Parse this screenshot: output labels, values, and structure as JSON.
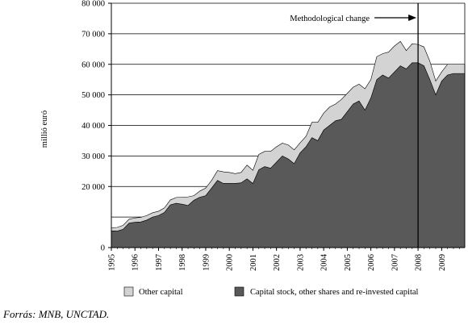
{
  "chart_data": {
    "type": "area",
    "stacked": true,
    "title": "",
    "xlabel": "",
    "ylabel": "millió euró",
    "ylim": [
      0,
      80000
    ],
    "y_ticks": [
      {
        "value": 0,
        "label": "0"
      },
      {
        "value": 20000,
        "label": "20 000"
      },
      {
        "value": 30000,
        "label": "30 000"
      },
      {
        "value": 40000,
        "label": "40 000"
      },
      {
        "value": 50000,
        "label": "50 000"
      },
      {
        "value": 60000,
        "label": "60 000"
      },
      {
        "value": 70000,
        "label": "70 000"
      },
      {
        "value": 80000,
        "label": "80 000"
      }
    ],
    "gridlines_y": [
      10000,
      20000,
      30000,
      40000,
      50000,
      60000,
      70000,
      80000
    ],
    "x_range": [
      1995,
      2009.98
    ],
    "x_ticks": [
      "1995",
      "1996",
      "1997",
      "1998",
      "1999",
      "2000",
      "2001",
      "2002",
      "2003",
      "2004",
      "2005",
      "2006",
      "2007",
      "2008",
      "2009"
    ],
    "annotation": {
      "text": "Methodological change",
      "x": 2008.0
    },
    "legend_position": "bottom",
    "x": [
      1995.0,
      1995.25,
      1995.5,
      1995.75,
      1996.0,
      1996.25,
      1996.5,
      1996.75,
      1997.0,
      1997.25,
      1997.5,
      1997.75,
      1998.0,
      1998.25,
      1998.5,
      1998.75,
      1999.0,
      1999.25,
      1999.5,
      1999.75,
      2000.0,
      2000.25,
      2000.5,
      2000.75,
      2001.0,
      2001.25,
      2001.5,
      2001.75,
      2002.0,
      2002.25,
      2002.5,
      2002.75,
      2003.0,
      2003.25,
      2003.5,
      2003.75,
      2004.0,
      2004.25,
      2004.5,
      2004.75,
      2005.0,
      2005.25,
      2005.5,
      2005.75,
      2006.0,
      2006.25,
      2006.5,
      2006.75,
      2007.0,
      2007.25,
      2007.5,
      2007.75,
      2008.0,
      2008.25,
      2008.5,
      2008.75,
      2009.0,
      2009.25,
      2009.5,
      2009.75,
      2009.98
    ],
    "series": [
      {
        "name": "Capital stock, other shares and re-invested capital",
        "color": "#595959",
        "values": [
          5500,
          5400,
          6000,
          8000,
          8300,
          8400,
          9000,
          10000,
          10500,
          11500,
          14000,
          14500,
          14200,
          13800,
          15500,
          16500,
          17000,
          19500,
          22000,
          21000,
          21000,
          21000,
          21200,
          22500,
          21000,
          25500,
          26500,
          26000,
          28000,
          30000,
          29000,
          27500,
          31000,
          33000,
          36000,
          35000,
          38500,
          40000,
          41500,
          42000,
          44500,
          47000,
          48000,
          45000,
          49000,
          55000,
          56500,
          55500,
          57500,
          59500,
          58500,
          60500,
          60500,
          59500,
          55000,
          50000,
          54500,
          56500,
          57000,
          57000,
          57000
        ]
      },
      {
        "name": "Other capital",
        "color": "#d3d3d3",
        "values": [
          1000,
          1200,
          1300,
          1300,
          1400,
          1500,
          1500,
          1400,
          1400,
          1500,
          1600,
          1900,
          2300,
          2800,
          1500,
          2000,
          2500,
          2500,
          3200,
          3800,
          3600,
          3200,
          3400,
          4500,
          4300,
          5000,
          5000,
          5500,
          5000,
          4200,
          4600,
          4500,
          3300,
          3400,
          5000,
          6000,
          5500,
          6000,
          5500,
          6500,
          6000,
          5500,
          5500,
          7000,
          6000,
          7500,
          7000,
          8500,
          8500,
          8000,
          6000,
          6200,
          6000,
          6200,
          6000,
          4500,
          3000,
          3500,
          3000,
          3000,
          3000
        ]
      }
    ]
  },
  "source_text": "Forrás: MNB, UNCTAD."
}
